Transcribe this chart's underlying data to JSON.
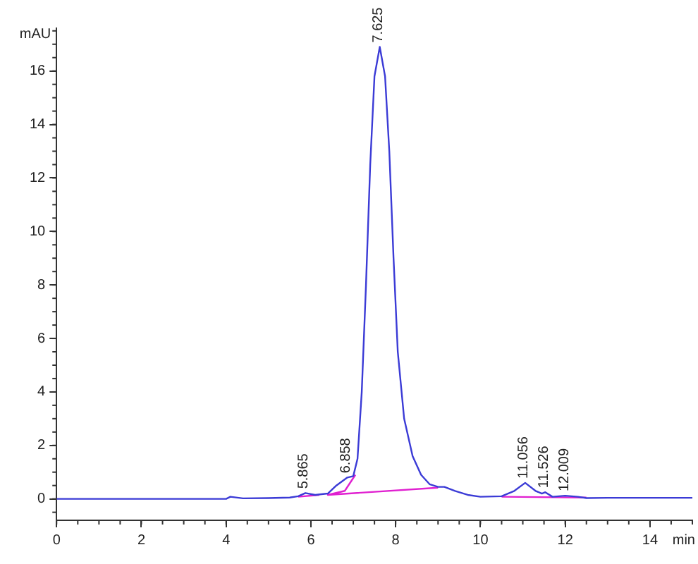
{
  "chart_data": {
    "type": "line",
    "xlabel": "min",
    "ylabel": "mAU",
    "series": [
      {
        "color": "#3b3bd6",
        "x": [
          0,
          1,
          2,
          3,
          4,
          4.1,
          4.4,
          5,
          5.5,
          5.7,
          5.87,
          6.1,
          6.4,
          6.6,
          6.86,
          7.0,
          7.1,
          7.2,
          7.3,
          7.4,
          7.5,
          7.625,
          7.75,
          7.85,
          7.95,
          8.05,
          8.2,
          8.4,
          8.6,
          8.8,
          9.0,
          9.15,
          9.4,
          9.7,
          10.0,
          10.5,
          10.8,
          11.056,
          11.3,
          11.45,
          11.53,
          11.7,
          12.0,
          12.3,
          12.5,
          13,
          14,
          15
        ],
        "values": [
          0,
          0,
          0,
          0,
          0,
          0.08,
          0.02,
          0.03,
          0.05,
          0.1,
          0.22,
          0.15,
          0.2,
          0.5,
          0.8,
          0.85,
          1.5,
          4,
          8,
          12.5,
          15.8,
          16.9,
          15.8,
          13,
          9,
          5.5,
          3,
          1.6,
          0.9,
          0.55,
          0.45,
          0.45,
          0.3,
          0.15,
          0.08,
          0.1,
          0.3,
          0.6,
          0.3,
          0.2,
          0.25,
          0.08,
          0.12,
          0.08,
          0.03,
          0.04,
          0.04,
          0.04
        ]
      },
      {
        "color": "#e020d0",
        "x": [
          5.7,
          6.2,
          6.25,
          7.05,
          6.8,
          6.4,
          9.0,
          9.05,
          10.5,
          12.5
        ],
        "values": [
          0.08,
          0.15,
          null,
          0.9,
          0.3,
          0.15,
          0.42,
          null,
          0.08,
          0.05
        ]
      }
    ],
    "annotations": [
      {
        "text": "5.865",
        "x": 5.865,
        "y": 0.22
      },
      {
        "text": "6.858",
        "x": 6.858,
        "y": 0.8
      },
      {
        "text": "7.625",
        "x": 7.625,
        "y": 16.9
      },
      {
        "text": "11.056",
        "x": 11.056,
        "y": 0.6
      },
      {
        "text": "11.526",
        "x": 11.526,
        "y": 0.25
      },
      {
        "text": "12.009",
        "x": 12.009,
        "y": 0.12
      }
    ],
    "xlim": [
      0,
      15
    ],
    "xticks": [
      0,
      2,
      4,
      6,
      8,
      10,
      12,
      14
    ],
    "ylim": [
      -0.8,
      17.6
    ],
    "yticks": [
      0,
      2,
      4,
      6,
      8,
      10,
      12,
      14,
      16
    ],
    "grid": false,
    "legend": false,
    "marker": "none",
    "line_style": "solid"
  }
}
